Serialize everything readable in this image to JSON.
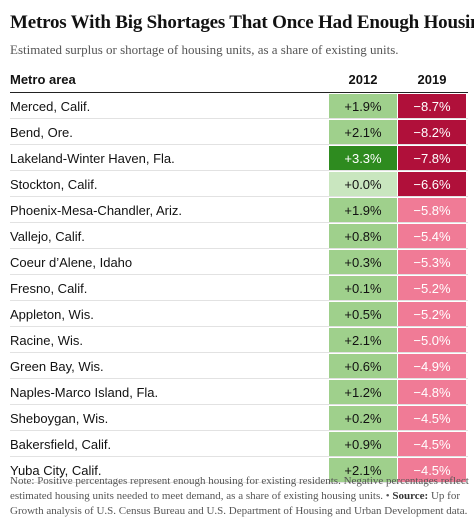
{
  "title": "Metros With Big Shortages That Once Had Enough Housing",
  "subtitle": "Estimated surplus or shortage of housing units, as a share of existing units.",
  "colors": {
    "surplus_light": "#9fd08c",
    "surplus_dark": "#2e8b1f",
    "shortage_light": "#f07b96",
    "shortage_dark": "#b0103a"
  },
  "chart_data": {
    "type": "table",
    "columns": [
      "Metro area",
      "2012",
      "2019"
    ],
    "rows": [
      {
        "metro": "Merced, Calif.",
        "v2012": 1.9,
        "v2019": -8.7,
        "label2012": "+1.9%",
        "label2019": "−8.7%"
      },
      {
        "metro": "Bend, Ore.",
        "v2012": 2.1,
        "v2019": -8.2,
        "label2012": "+2.1%",
        "label2019": "−8.2%"
      },
      {
        "metro": "Lakeland-Winter Haven, Fla.",
        "v2012": 3.3,
        "v2019": -7.8,
        "label2012": "+3.3%",
        "label2019": "−7.8%"
      },
      {
        "metro": "Stockton, Calif.",
        "v2012": 0.0,
        "v2019": -6.6,
        "label2012": "+0.0%",
        "label2019": "−6.6%"
      },
      {
        "metro": "Phoenix-Mesa-Chandler, Ariz.",
        "v2012": 1.9,
        "v2019": -5.8,
        "label2012": "+1.9%",
        "label2019": "−5.8%"
      },
      {
        "metro": "Vallejo, Calif.",
        "v2012": 0.8,
        "v2019": -5.4,
        "label2012": "+0.8%",
        "label2019": "−5.4%"
      },
      {
        "metro": "Coeur d’Alene, Idaho",
        "v2012": 0.3,
        "v2019": -5.3,
        "label2012": "+0.3%",
        "label2019": "−5.3%"
      },
      {
        "metro": "Fresno, Calif.",
        "v2012": 0.1,
        "v2019": -5.2,
        "label2012": "+0.1%",
        "label2019": "−5.2%"
      },
      {
        "metro": "Appleton, Wis.",
        "v2012": 0.5,
        "v2019": -5.2,
        "label2012": "+0.5%",
        "label2019": "−5.2%"
      },
      {
        "metro": "Racine, Wis.",
        "v2012": 2.1,
        "v2019": -5.0,
        "label2012": "+2.1%",
        "label2019": "−5.0%"
      },
      {
        "metro": "Green Bay, Wis.",
        "v2012": 0.6,
        "v2019": -4.9,
        "label2012": "+0.6%",
        "label2019": "−4.9%"
      },
      {
        "metro": "Naples-Marco Island, Fla.",
        "v2012": 1.2,
        "v2019": -4.8,
        "label2012": "+1.2%",
        "label2019": "−4.8%"
      },
      {
        "metro": "Sheboygan, Wis.",
        "v2012": 0.2,
        "v2019": -4.5,
        "label2012": "+0.2%",
        "label2019": "−4.5%"
      },
      {
        "metro": "Bakersfield, Calif.",
        "v2012": 0.9,
        "v2019": -4.5,
        "label2012": "+0.9%",
        "label2019": "−4.5%"
      },
      {
        "metro": "Yuba City, Calif.",
        "v2012": 2.1,
        "v2019": -4.5,
        "label2012": "+2.1%",
        "label2019": "−4.5%"
      }
    ]
  },
  "notes": {
    "note": "Note: Positive percentages represent enough housing for existing residents. Negative percentages reflect estimated housing units needed to meet demand, as a share of existing housing units.",
    "separator": "•",
    "source_label": "Source:",
    "source_text": "Up for Growth analysis of U.S. Census Bureau and U.S. Department of Housing and Urban Development data."
  }
}
